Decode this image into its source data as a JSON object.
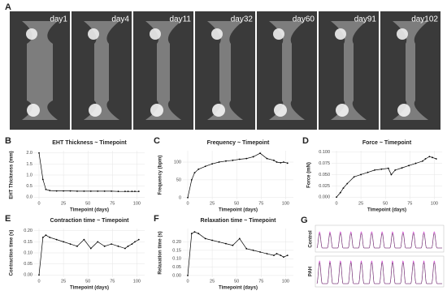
{
  "figure_a": {
    "panel": "A",
    "days": [
      "day1",
      "day4",
      "day11",
      "day32",
      "day60",
      "day91",
      "day102"
    ]
  },
  "chart_data": [
    {
      "type": "line",
      "panel": "B",
      "title": "EHT Thickness ~ Timepoint",
      "xlabel": "Timepoint (days)",
      "ylabel": "EHT Thickness (mm)",
      "color": "#000000",
      "x": [
        0,
        4,
        7,
        11,
        18,
        25,
        32,
        39,
        46,
        53,
        60,
        67,
        74,
        81,
        88,
        91,
        95,
        98,
        102
      ],
      "values": [
        2.0,
        0.8,
        0.35,
        0.3,
        0.28,
        0.28,
        0.28,
        0.27,
        0.27,
        0.27,
        0.27,
        0.27,
        0.27,
        0.26,
        0.26,
        0.26,
        0.26,
        0.26,
        0.26
      ],
      "xlim": [
        -5,
        108
      ],
      "ylim": [
        -0.1,
        2.1
      ],
      "xticks": [
        0,
        25,
        50,
        75,
        100
      ],
      "yticks": [
        {
          "value": 0,
          "label": "0.0"
        },
        0.5,
        {
          "value": 1,
          "label": "1.0"
        },
        1.5,
        {
          "value": 2,
          "label": "2.0"
        }
      ]
    },
    {
      "type": "line",
      "panel": "C",
      "title": "Frequency ~ Timepoint",
      "xlabel": "Timepoint (days)",
      "ylabel": "Frequency (bpm)",
      "color": "#000000",
      "x": [
        0,
        4,
        7,
        11,
        18,
        25,
        32,
        39,
        46,
        53,
        60,
        67,
        74,
        81,
        88,
        91,
        95,
        98,
        102
      ],
      "values": [
        0,
        50,
        70,
        80,
        88,
        95,
        100,
        103,
        105,
        108,
        110,
        115,
        125,
        110,
        105,
        100,
        98,
        100,
        97
      ],
      "xlim": [
        -5,
        108
      ],
      "ylim": [
        -5,
        132
      ],
      "xticks": [
        0,
        25,
        50,
        75,
        100
      ],
      "yticks": [
        0,
        50,
        100
      ]
    },
    {
      "type": "line",
      "panel": "D",
      "title": "Force ~ Timepoint",
      "xlabel": "Timepoint (days)",
      "ylabel": "Force (mN)",
      "color": "#000000",
      "x": [
        0,
        4,
        7,
        11,
        18,
        25,
        32,
        39,
        46,
        53,
        56,
        60,
        67,
        74,
        81,
        88,
        91,
        95,
        98,
        102
      ],
      "values": [
        0,
        0.01,
        0.02,
        0.03,
        0.045,
        0.05,
        0.055,
        0.06,
        0.062,
        0.064,
        0.05,
        0.06,
        0.065,
        0.07,
        0.075,
        0.08,
        0.085,
        0.09,
        0.088,
        0.085
      ],
      "xlim": [
        -5,
        108
      ],
      "ylim": [
        -0.005,
        0.103
      ],
      "xticks": [
        0,
        25,
        50,
        75,
        100
      ],
      "yticks": [
        {
          "value": 0,
          "label": "0.000"
        },
        {
          "value": 0.025,
          "label": "0.025"
        },
        {
          "value": 0.05,
          "label": "0.050"
        },
        {
          "value": 0.075,
          "label": "0.075"
        },
        {
          "value": 0.1,
          "label": "0.100"
        }
      ]
    },
    {
      "type": "line",
      "panel": "E",
      "title": "Contraction time ~ Timepoint",
      "xlabel": "Timepoint (days)",
      "ylabel": "Contraction time (s)",
      "color": "#000000",
      "x": [
        0,
        4,
        7,
        11,
        18,
        25,
        32,
        39,
        46,
        53,
        60,
        67,
        74,
        81,
        88,
        91,
        95,
        98,
        102
      ],
      "values": [
        0,
        0.17,
        0.18,
        0.17,
        0.16,
        0.15,
        0.14,
        0.13,
        0.16,
        0.12,
        0.15,
        0.13,
        0.14,
        0.13,
        0.12,
        0.13,
        0.14,
        0.15,
        0.16
      ],
      "xlim": [
        -5,
        108
      ],
      "ylim": [
        -0.01,
        0.21
      ],
      "xticks": [
        0,
        25,
        50,
        75,
        100
      ],
      "yticks": [
        {
          "value": 0,
          "label": "0.00"
        },
        0.05,
        {
          "value": 0.1,
          "label": "0.10"
        },
        0.15,
        {
          "value": 0.2,
          "label": "0.20"
        }
      ]
    },
    {
      "type": "line",
      "panel": "F",
      "title": "Relaxation time ~ Timepoint",
      "xlabel": "Timepoint (days)",
      "ylabel": "Relaxation time (s)",
      "color": "#000000",
      "x": [
        0,
        4,
        7,
        11,
        18,
        25,
        32,
        39,
        46,
        53,
        60,
        67,
        74,
        81,
        88,
        91,
        95,
        98,
        102
      ],
      "values": [
        0,
        0.25,
        0.26,
        0.25,
        0.22,
        0.21,
        0.2,
        0.19,
        0.18,
        0.22,
        0.16,
        0.15,
        0.14,
        0.13,
        0.12,
        0.13,
        0.12,
        0.11,
        0.12
      ],
      "xlim": [
        -5,
        108
      ],
      "ylim": [
        -0.01,
        0.28
      ],
      "xticks": [
        0,
        25,
        50,
        75,
        100
      ],
      "yticks": [
        {
          "value": 0,
          "label": "0.00"
        },
        0.05,
        {
          "value": 0.1,
          "label": "0.10"
        },
        0.15,
        {
          "value": 0.2,
          "label": "0.20"
        }
      ]
    }
  ],
  "figure_g": {
    "panel": "G",
    "rows": [
      "Control",
      "PAH"
    ]
  }
}
